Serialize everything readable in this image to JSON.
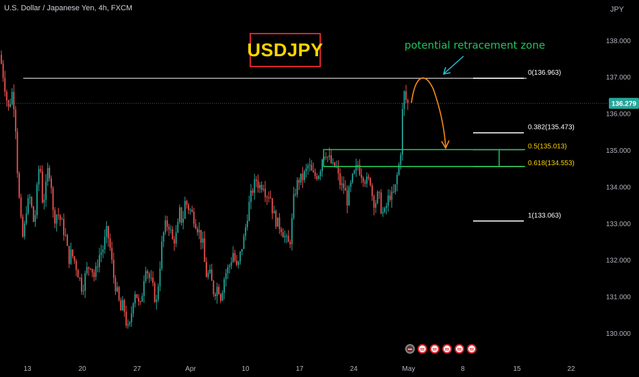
{
  "header": {
    "title": "U.S. Dollar / Japanese Yen, 4h, FXCM",
    "currency": "JPY"
  },
  "symbol_label": "USDJPY",
  "annotation": "potential retracement zone",
  "colors": {
    "up": "#26a69a",
    "down": "#ef5350",
    "zone": "#22c55e",
    "arrow": "#ff8c1a",
    "accent": "#d9262c",
    "label": "#ffd500"
  },
  "chart_data": {
    "type": "candlestick",
    "title": "",
    "timeframe": "4h",
    "ylim": [
      129.3,
      138.6
    ],
    "y_ticks": [
      130.0,
      131.0,
      132.0,
      133.0,
      134.0,
      135.0,
      136.0,
      137.0,
      138.0
    ],
    "x_tick_labels": [
      "13",
      "20",
      "27",
      "Apr",
      "10",
      "17",
      "24",
      "May",
      "8",
      "15",
      "22"
    ],
    "current_price": {
      "value": 136.279,
      "label": "136.279"
    },
    "fibonacci": [
      {
        "level": "0",
        "price": 136.963,
        "label": "0(136.963)",
        "color": "#ffffff"
      },
      {
        "level": "0.382",
        "price": 135.473,
        "label": "0.382(135.473)",
        "color": "#ffffff"
      },
      {
        "level": "0.5",
        "price": 135.013,
        "label": "0.5(135.013)",
        "color": "#ffd500"
      },
      {
        "level": "0.618",
        "price": 134.553,
        "label": "0.618(134.553)",
        "color": "#ffd500"
      },
      {
        "level": "1",
        "price": 133.063,
        "label": "1(133.063)",
        "color": "#ffffff"
      }
    ],
    "resistance_line": {
      "price": 136.963
    },
    "zone": {
      "top": 135.013,
      "bottom": 134.553
    },
    "close_path": [
      [
        0,
        137.6
      ],
      [
        6,
        136.9
      ],
      [
        12,
        136.1
      ],
      [
        18,
        136.6
      ],
      [
        22,
        136.0
      ],
      [
        26,
        134.2
      ],
      [
        30,
        133.1
      ],
      [
        34,
        132.5
      ],
      [
        38,
        133.4
      ],
      [
        44,
        133.7
      ],
      [
        50,
        132.9
      ],
      [
        54,
        133.9
      ],
      [
        58,
        134.8
      ],
      [
        62,
        133.6
      ],
      [
        66,
        133.8
      ],
      [
        70,
        134.5
      ],
      [
        74,
        134.3
      ],
      [
        78,
        133.1
      ],
      [
        84,
        133.3
      ],
      [
        90,
        133.0
      ],
      [
        96,
        132.6
      ],
      [
        100,
        132.0
      ],
      [
        104,
        132.2
      ],
      [
        110,
        131.9
      ],
      [
        116,
        131.5
      ],
      [
        120,
        131.2
      ],
      [
        126,
        131.7
      ],
      [
        132,
        131.9
      ],
      [
        138,
        131.5
      ],
      [
        144,
        132.1
      ],
      [
        150,
        132.3
      ],
      [
        156,
        132.8
      ],
      [
        160,
        132.4
      ],
      [
        166,
        131.5
      ],
      [
        172,
        131.0
      ],
      [
        176,
        130.6
      ],
      [
        180,
        130.8
      ],
      [
        184,
        130.3
      ],
      [
        188,
        130.0
      ],
      [
        192,
        130.6
      ],
      [
        196,
        131.2
      ],
      [
        200,
        131.0
      ],
      [
        204,
        130.6
      ],
      [
        208,
        131.2
      ],
      [
        212,
        131.9
      ],
      [
        218,
        131.5
      ],
      [
        222,
        131.3
      ],
      [
        228,
        130.8
      ],
      [
        232,
        131.6
      ],
      [
        236,
        132.4
      ],
      [
        240,
        132.9
      ],
      [
        246,
        133.0
      ],
      [
        252,
        132.5
      ],
      [
        258,
        132.7
      ],
      [
        262,
        133.3
      ],
      [
        266,
        133.0
      ],
      [
        270,
        133.6
      ],
      [
        276,
        133.4
      ],
      [
        282,
        133.2
      ],
      [
        286,
        133.0
      ],
      [
        290,
        132.8
      ],
      [
        296,
        132.4
      ],
      [
        300,
        131.6
      ],
      [
        306,
        131.6
      ],
      [
        312,
        131.1
      ],
      [
        318,
        131.3
      ],
      [
        322,
        131.0
      ],
      [
        328,
        131.6
      ],
      [
        334,
        131.8
      ],
      [
        340,
        132.2
      ],
      [
        346,
        131.7
      ],
      [
        352,
        132.3
      ],
      [
        356,
        132.6
      ],
      [
        362,
        133.4
      ],
      [
        368,
        133.9
      ],
      [
        374,
        134.2
      ],
      [
        378,
        134.0
      ],
      [
        384,
        134.1
      ],
      [
        388,
        133.8
      ],
      [
        394,
        133.8
      ],
      [
        398,
        133.3
      ],
      [
        404,
        133.0
      ],
      [
        410,
        132.9
      ],
      [
        416,
        132.6
      ],
      [
        420,
        132.4
      ],
      [
        424,
        132.6
      ],
      [
        428,
        133.6
      ],
      [
        432,
        134.0
      ],
      [
        436,
        134.2
      ],
      [
        440,
        134.2
      ],
      [
        446,
        134.4
      ],
      [
        450,
        134.6
      ],
      [
        456,
        134.3
      ],
      [
        460,
        134.3
      ],
      [
        466,
        134.4
      ],
      [
        470,
        134.8
      ],
      [
        474,
        135.0
      ],
      [
        478,
        134.8
      ],
      [
        482,
        134.7
      ],
      [
        486,
        134.5
      ],
      [
        490,
        134.6
      ],
      [
        494,
        134.2
      ],
      [
        498,
        134.0
      ],
      [
        502,
        134.0
      ],
      [
        506,
        133.6
      ],
      [
        510,
        133.9
      ],
      [
        514,
        134.2
      ],
      [
        518,
        134.4
      ],
      [
        522,
        134.6
      ],
      [
        526,
        134.4
      ],
      [
        530,
        134.3
      ],
      [
        536,
        134.1
      ],
      [
        540,
        134.2
      ],
      [
        544,
        133.6
      ],
      [
        548,
        133.6
      ],
      [
        552,
        133.8
      ],
      [
        556,
        133.4
      ],
      [
        560,
        133.2
      ],
      [
        564,
        133.5
      ],
      [
        568,
        133.8
      ],
      [
        572,
        133.7
      ],
      [
        576,
        133.9
      ],
      [
        580,
        134.4
      ],
      [
        584,
        134.8
      ],
      [
        586,
        135.8
      ],
      [
        588,
        136.3
      ],
      [
        590,
        136.6
      ],
      [
        592,
        136.4
      ],
      [
        594,
        136.1
      ],
      [
        597,
        136.28
      ]
    ]
  }
}
